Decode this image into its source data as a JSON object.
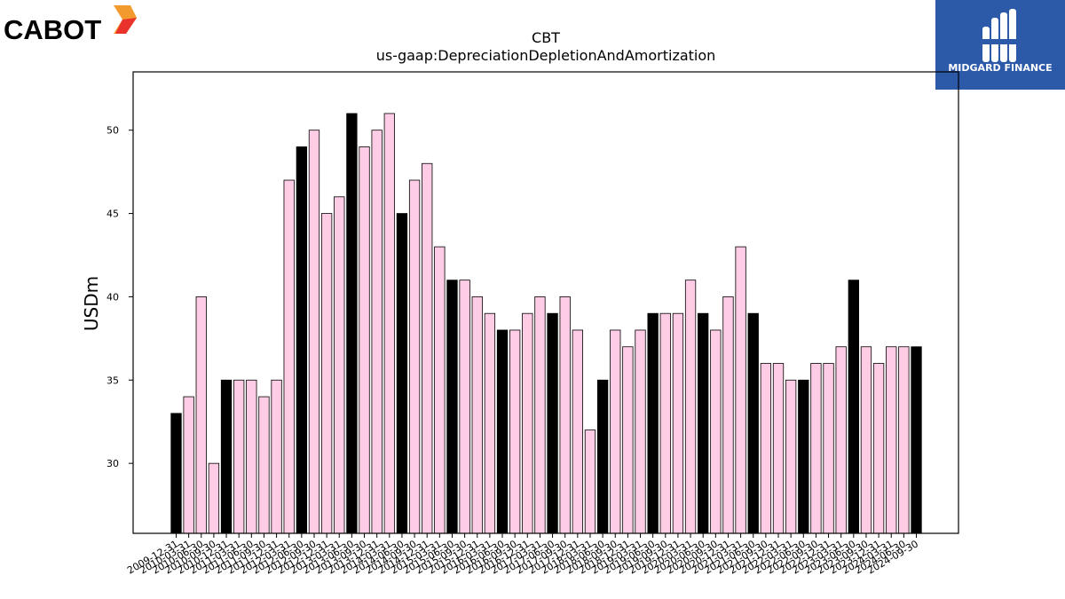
{
  "brand_left": {
    "name": "CABOT",
    "accent_colors": [
      "#e8322b",
      "#f29a2e"
    ]
  },
  "brand_right": {
    "name": "MIDGARD FINANCE",
    "background": "#2c5aa8"
  },
  "chart_data": {
    "type": "bar",
    "title": "CBT",
    "subtitle": "us-gaap:DepreciationDepletionAndAmortization",
    "xlabel": "",
    "ylabel": "USDm",
    "ylim": [
      25.8,
      53.5
    ],
    "yticks": [
      30,
      35,
      40,
      45,
      50
    ],
    "grid": false,
    "colors": {
      "annual": "#000000",
      "quarterly": "#ffcce6",
      "edge": "#000000"
    },
    "categories": [
      "2009-12-31",
      "2010-03-31",
      "2010-06-30",
      "2010-09-30",
      "2010-12-31",
      "2011-03-31",
      "2011-06-30",
      "2011-09-30",
      "2011-12-31",
      "2012-03-31",
      "2012-06-30",
      "2012-09-30",
      "2012-12-31",
      "2013-03-31",
      "2013-06-30",
      "2013-09-30",
      "2013-12-31",
      "2014-03-31",
      "2014-06-30",
      "2014-09-30",
      "2014-12-31",
      "2015-03-31",
      "2015-06-30",
      "2015-09-30",
      "2015-12-31",
      "2016-03-31",
      "2016-06-30",
      "2016-09-30",
      "2016-12-31",
      "2017-03-31",
      "2017-06-30",
      "2017-09-30",
      "2017-12-31",
      "2018-03-31",
      "2018-06-30",
      "2018-09-30",
      "2018-12-31",
      "2019-03-31",
      "2019-06-30",
      "2019-09-30",
      "2019-12-31",
      "2020-03-31",
      "2020-06-30",
      "2020-09-30",
      "2020-12-31",
      "2021-03-31",
      "2021-06-30",
      "2021-09-30",
      "2021-12-31",
      "2022-03-31",
      "2022-06-30",
      "2022-09-30",
      "2022-12-31",
      "2023-03-31",
      "2023-06-30",
      "2023-09-30",
      "2023-12-31",
      "2024-03-31",
      "2024-06-30",
      "2024-09-30"
    ],
    "values": [
      33,
      34,
      40,
      30,
      35,
      35,
      35,
      34,
      35,
      47,
      49,
      50,
      45,
      46,
      51,
      49,
      50,
      51,
      45,
      47,
      48,
      43,
      41,
      41,
      40,
      39,
      38,
      38,
      39,
      40,
      39,
      40,
      38,
      32,
      35,
      38,
      37,
      38,
      39,
      39,
      39,
      41,
      39,
      38,
      40,
      43,
      39,
      36,
      36,
      35,
      35,
      36,
      36,
      37,
      41,
      37,
      36,
      37,
      37,
      37
    ],
    "annual_flags": [
      1,
      0,
      0,
      0,
      1,
      0,
      0,
      0,
      0,
      0,
      1,
      0,
      0,
      0,
      1,
      0,
      0,
      0,
      1,
      0,
      0,
      0,
      1,
      0,
      0,
      0,
      1,
      0,
      0,
      0,
      1,
      0,
      0,
      0,
      1,
      0,
      0,
      0,
      1,
      0,
      0,
      0,
      1,
      0,
      0,
      0,
      1,
      0,
      0,
      0,
      1,
      0,
      0,
      0,
      1,
      0,
      0,
      0,
      0,
      1
    ]
  }
}
